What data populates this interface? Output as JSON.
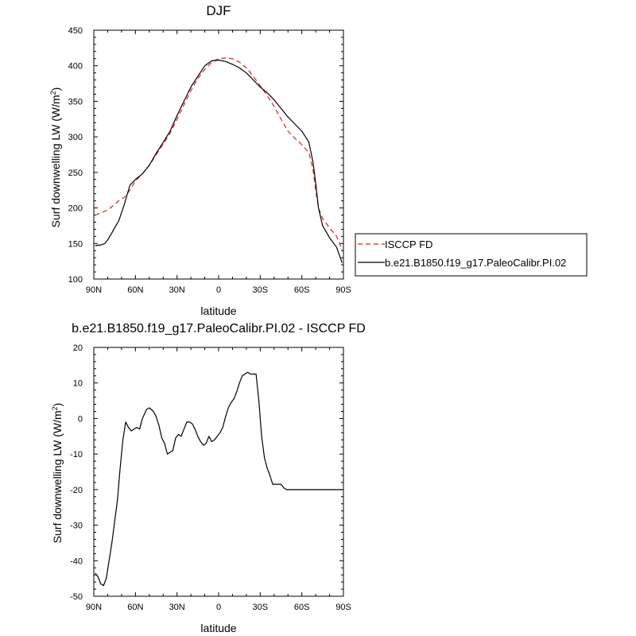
{
  "chart_data": [
    {
      "type": "line",
      "title": "DJF",
      "xlabel": "latitude",
      "ylabel": "Surf downwelling LW (W/m",
      "ylabel_sup": "2",
      "ylabel_tail": ")",
      "x_ticks": [
        "90N",
        "60N",
        "30N",
        "0",
        "30S",
        "60S",
        "90S"
      ],
      "xlim": [
        90,
        -90
      ],
      "ylim": [
        100,
        450
      ],
      "y_ticks": [
        100,
        150,
        200,
        250,
        300,
        350,
        400,
        450
      ],
      "legend_position": "right",
      "series": [
        {
          "name": "ISCCP FD",
          "color": "#e41a1c",
          "dash": true,
          "x": [
            89,
            85,
            80,
            75,
            72,
            68,
            64,
            60,
            55,
            50,
            45,
            40,
            35,
            30,
            25,
            20,
            15,
            10,
            5,
            0,
            -5,
            -10,
            -15,
            -20,
            -25,
            -30,
            -35,
            -40,
            -45,
            -50,
            -55,
            -60,
            -65,
            -68,
            -70,
            -72,
            -75,
            -80,
            -85,
            -89
          ],
          "y": [
            190,
            193,
            197,
            205,
            210,
            215,
            225,
            238,
            248,
            260,
            275,
            290,
            305,
            325,
            345,
            365,
            382,
            395,
            405,
            410,
            411,
            410,
            405,
            397,
            385,
            372,
            358,
            343,
            325,
            308,
            298,
            289,
            278,
            255,
            225,
            200,
            185,
            172,
            160,
            142
          ]
        },
        {
          "name": "b.e21.B1850.f19_g17.PaleoCalibr.PI.02",
          "color": "#000000",
          "dash": false,
          "x": [
            89,
            85,
            82,
            80,
            77,
            75,
            72,
            68,
            64,
            60,
            55,
            50,
            45,
            40,
            35,
            30,
            25,
            20,
            15,
            10,
            5,
            0,
            -5,
            -10,
            -15,
            -20,
            -25,
            -30,
            -35,
            -40,
            -45,
            -50,
            -55,
            -60,
            -65,
            -68,
            -70,
            -72,
            -75,
            -80,
            -85,
            -89
          ],
          "y": [
            147,
            148,
            150,
            155,
            165,
            172,
            182,
            205,
            232,
            240,
            248,
            260,
            277,
            292,
            308,
            330,
            350,
            370,
            385,
            400,
            407,
            408,
            406,
            402,
            397,
            390,
            380,
            370,
            362,
            352,
            340,
            328,
            318,
            308,
            293,
            265,
            235,
            200,
            175,
            158,
            145,
            123
          ]
        }
      ]
    },
    {
      "type": "line",
      "title": "b.e21.B1850.f19_g17.PaleoCalibr.PI.02 - ISCCP FD",
      "xlabel": "latitude",
      "ylabel": "Surf downwelling LW (W/m",
      "ylabel_sup": "2",
      "ylabel_tail": ")",
      "x_ticks": [
        "90N",
        "60N",
        "30N",
        "0",
        "30S",
        "60S",
        "90S"
      ],
      "xlim": [
        90,
        -90
      ],
      "ylim": [
        -50,
        20
      ],
      "y_ticks": [
        -50,
        -40,
        -30,
        -20,
        -10,
        0,
        10,
        20
      ],
      "series": [
        {
          "color": "#000000",
          "dash": false,
          "x": [
            89,
            87,
            85,
            83,
            81,
            79,
            77,
            75,
            73,
            71,
            69,
            67,
            65,
            63,
            61,
            59,
            57,
            55,
            52,
            50,
            47,
            45,
            43,
            41,
            39,
            37,
            35,
            33,
            31,
            29,
            27,
            25,
            23,
            21,
            19,
            17,
            15,
            13,
            11,
            9,
            7,
            5,
            3,
            1,
            -1,
            -3,
            -5,
            -7,
            -9,
            -11,
            -13,
            -15,
            -17,
            -19,
            -21,
            -23,
            -25,
            -27,
            -29,
            -31,
            -33,
            -35,
            -37,
            -39,
            -41,
            -43,
            -45,
            -47,
            -49,
            -51,
            -53,
            -55,
            -57,
            -59,
            -61,
            -63,
            -65,
            -67,
            -69,
            -71,
            -73,
            -75,
            -77,
            -79,
            -81,
            -83,
            -85,
            -87,
            -89
          ],
          "y": [
            -43.5,
            -44.5,
            -46.5,
            -47,
            -45,
            -40,
            -35,
            -29,
            -23,
            -14,
            -6,
            -1,
            -2.5,
            -3.5,
            -3,
            -2.5,
            -3,
            0,
            2.5,
            3,
            2,
            0.5,
            -2,
            -5.5,
            -7,
            -10,
            -9.5,
            -9,
            -5.5,
            -4.5,
            -5,
            -3,
            -1,
            -1,
            -1.5,
            -3,
            -5,
            -6.5,
            -7.5,
            -7,
            -5,
            -6.5,
            -6,
            -5,
            -4,
            -2.5,
            0.5,
            3,
            4.5,
            5.5,
            7.5,
            10,
            12,
            12.5,
            13,
            12.5,
            12.5,
            12.5,
            5,
            -5,
            -11,
            -14,
            -16,
            -18.5,
            -18.5,
            -18.5,
            -18.5,
            -19.5,
            -20,
            -20,
            -20,
            -20,
            -20,
            -20,
            -20,
            -20,
            -20,
            -20,
            -20,
            -20,
            -20,
            -20,
            -20,
            -20,
            -20,
            -20,
            -20,
            -20,
            -20
          ]
        }
      ]
    }
  ]
}
